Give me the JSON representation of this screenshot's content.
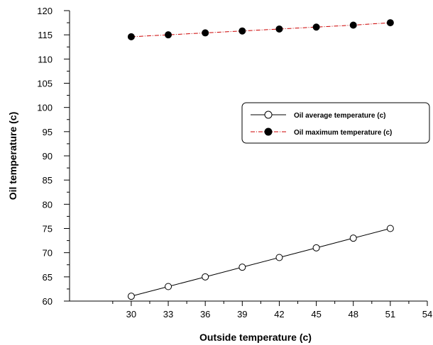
{
  "chart_data": {
    "type": "line",
    "title": "",
    "xlabel": "Outside temperature (c)",
    "ylabel": "Oil temperature (c)",
    "xlim": [
      25,
      54
    ],
    "ylim": [
      60,
      120
    ],
    "x_ticks": [
      30,
      33,
      36,
      39,
      42,
      45,
      48,
      51,
      54
    ],
    "y_ticks": [
      60,
      65,
      70,
      75,
      80,
      85,
      90,
      95,
      100,
      105,
      110,
      115,
      120
    ],
    "x": [
      30,
      33,
      36,
      39,
      42,
      45,
      48,
      51
    ],
    "series": [
      {
        "name": "Oil average temperature (c)",
        "values": [
          61,
          63,
          65,
          67,
          69,
          71,
          73,
          75
        ],
        "marker": "open-circle",
        "line_style": "solid",
        "color": "#000000"
      },
      {
        "name": "Oil maximum temperature (c)",
        "values": [
          114.6,
          115.0,
          115.4,
          115.8,
          116.2,
          116.6,
          117.0,
          117.5
        ],
        "marker": "filled-circle",
        "line_style": "dash-dot",
        "color": "#cc0000"
      }
    ],
    "grid": false,
    "legend_position": "center-right"
  }
}
